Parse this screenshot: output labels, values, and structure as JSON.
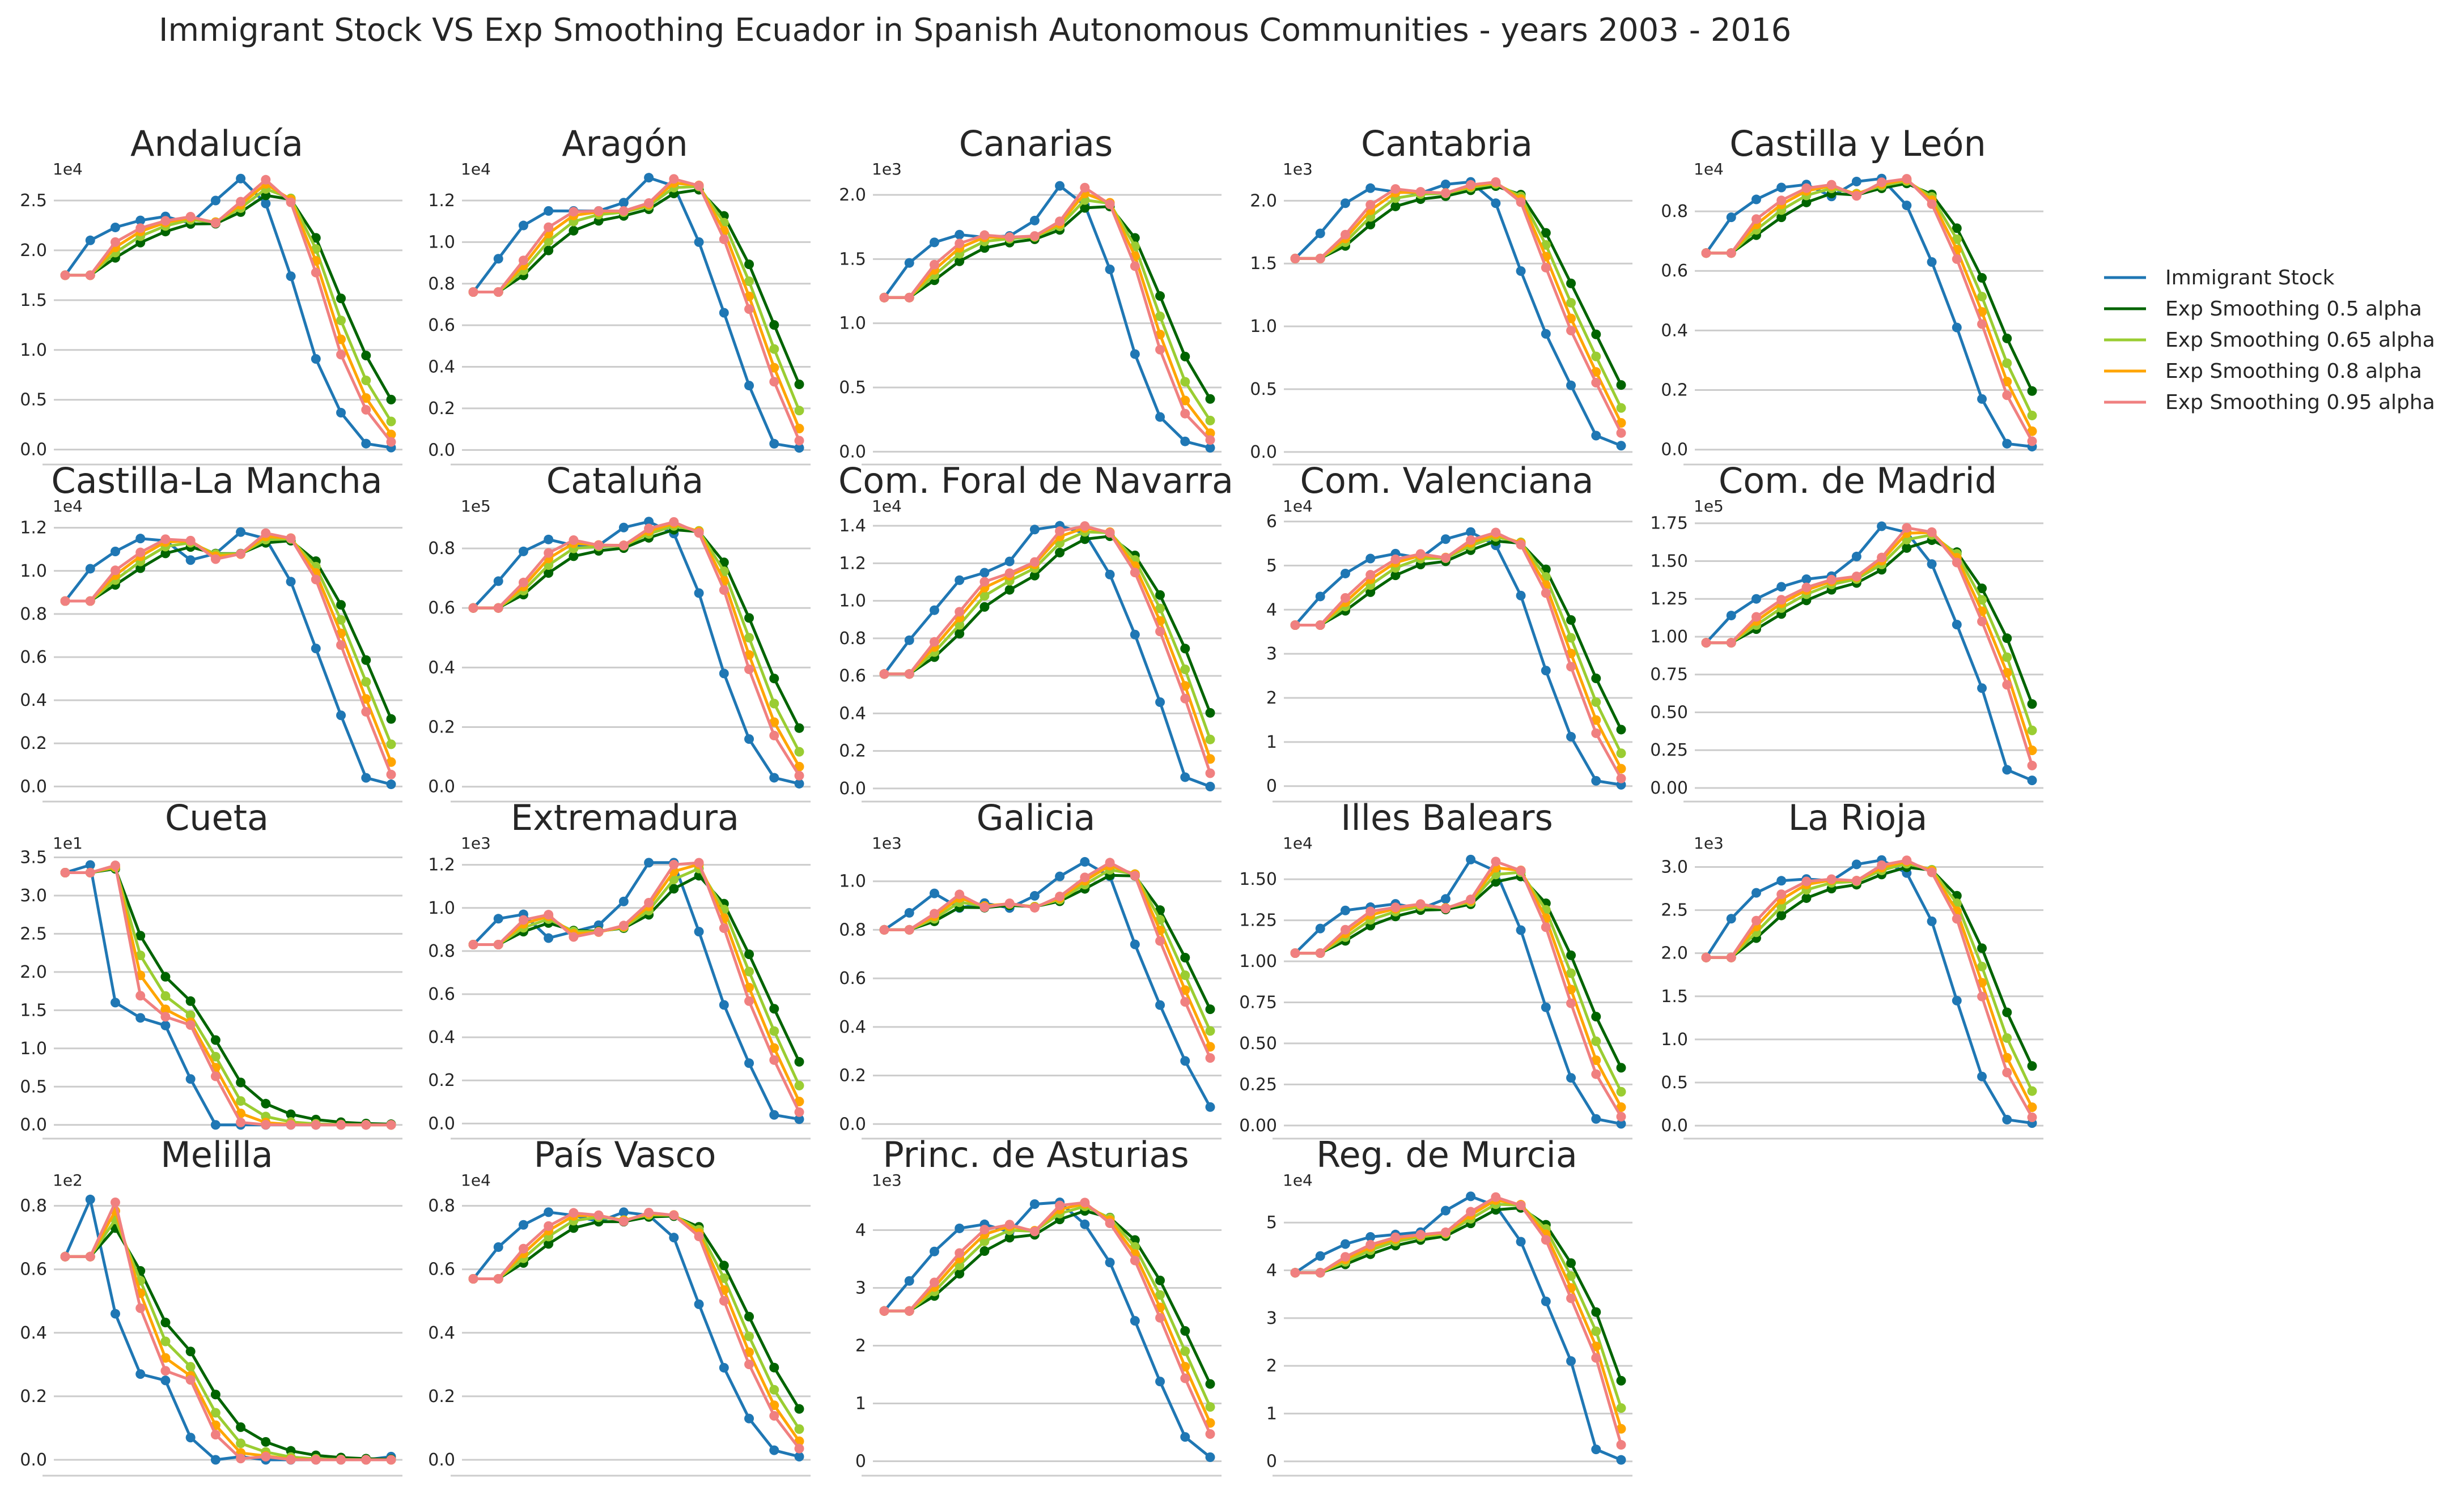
{
  "figure": {
    "title": "Immigrant Stock VS Exp Smoothing Ecuador in Spanish Autonomous Communities - years 2003 - 2016"
  },
  "legend": {
    "placement": "right",
    "entries": [
      {
        "label": "Immigrant Stock",
        "color": "#1f77b4"
      },
      {
        "label": "Exp Smoothing 0.5 alpha",
        "color": "#006400"
      },
      {
        "label": "Exp Smoothing 0.65 alpha",
        "color": "#9acd32"
      },
      {
        "label": "Exp Smoothing 0.8 alpha",
        "color": "#ffa500"
      },
      {
        "label": "Exp Smoothing 0.95 alpha",
        "color": "#f08080"
      }
    ]
  },
  "chart_data": [
    {
      "type": "line",
      "title": "Andalucía",
      "multiplier": "1e4",
      "yticks": [
        0.0,
        0.5,
        1.0,
        1.5,
        2.0,
        2.5
      ],
      "ylim": [
        -0.15,
        2.75
      ],
      "grid": true,
      "series": [
        {
          "name": "Immigrant Stock",
          "values": [
            1.75,
            2.1,
            2.23,
            2.3,
            2.34,
            2.27,
            2.5,
            2.72,
            2.47,
            1.74,
            0.91,
            0.37,
            0.06,
            0.02
          ]
        }
      ]
    },
    {
      "type": "line",
      "title": "Aragón",
      "multiplier": "1e4",
      "yticks": [
        0.0,
        0.2,
        0.4,
        0.6,
        0.8,
        1.0,
        1.2
      ],
      "ylim": [
        -0.07,
        1.32
      ],
      "grid": true,
      "series": [
        {
          "name": "Immigrant Stock",
          "values": [
            0.76,
            0.92,
            1.08,
            1.15,
            1.15,
            1.15,
            1.19,
            1.31,
            1.27,
            1.0,
            0.66,
            0.31,
            0.03,
            0.01
          ]
        }
      ]
    },
    {
      "type": "line",
      "title": "Canarias",
      "multiplier": "1e3",
      "yticks": [
        0.0,
        0.5,
        1.0,
        1.5,
        2.0
      ],
      "ylim": [
        -0.1,
        2.15
      ],
      "grid": true,
      "series": [
        {
          "name": "Immigrant Stock",
          "values": [
            1.2,
            1.47,
            1.63,
            1.69,
            1.67,
            1.68,
            1.8,
            2.07,
            1.92,
            1.42,
            0.76,
            0.27,
            0.08,
            0.03
          ]
        }
      ]
    },
    {
      "type": "line",
      "title": "Cantabria",
      "multiplier": "1e3",
      "yticks": [
        0.0,
        0.5,
        1.0,
        1.5,
        2.0
      ],
      "ylim": [
        -0.1,
        2.2
      ],
      "grid": true,
      "series": [
        {
          "name": "Immigrant Stock",
          "values": [
            1.54,
            1.74,
            1.98,
            2.1,
            2.07,
            2.06,
            2.13,
            2.15,
            1.98,
            1.44,
            0.94,
            0.53,
            0.13,
            0.05
          ]
        }
      ]
    },
    {
      "type": "line",
      "title": "Castilla y León",
      "multiplier": "1e4",
      "yticks": [
        0.0,
        0.2,
        0.4,
        0.6,
        0.8
      ],
      "ylim": [
        -0.05,
        0.92
      ],
      "grid": true,
      "series": [
        {
          "name": "Immigrant Stock",
          "values": [
            0.66,
            0.78,
            0.84,
            0.88,
            0.89,
            0.85,
            0.9,
            0.91,
            0.82,
            0.63,
            0.41,
            0.17,
            0.02,
            0.01
          ]
        }
      ]
    },
    {
      "type": "line",
      "title": "Castilla-La Mancha",
      "multiplier": "1e4",
      "yticks": [
        0.0,
        0.2,
        0.4,
        0.6,
        0.8,
        1.0,
        1.2
      ],
      "ylim": [
        -0.07,
        1.27
      ],
      "grid": true,
      "series": [
        {
          "name": "Immigrant Stock",
          "values": [
            0.86,
            1.01,
            1.09,
            1.15,
            1.14,
            1.05,
            1.08,
            1.18,
            1.15,
            0.95,
            0.64,
            0.33,
            0.04,
            0.01
          ]
        }
      ]
    },
    {
      "type": "line",
      "title": "Cataluña",
      "multiplier": "1e5",
      "yticks": [
        0.0,
        0.2,
        0.4,
        0.6,
        0.8
      ],
      "ylim": [
        -0.05,
        0.92
      ],
      "grid": true,
      "series": [
        {
          "name": "Immigrant Stock",
          "values": [
            0.6,
            0.69,
            0.79,
            0.83,
            0.81,
            0.81,
            0.87,
            0.89,
            0.85,
            0.65,
            0.38,
            0.16,
            0.03,
            0.01
          ]
        }
      ]
    },
    {
      "type": "line",
      "title": "Com. Foral de Navarra",
      "multiplier": "1e4",
      "yticks": [
        0.0,
        0.2,
        0.4,
        0.6,
        0.8,
        1.0,
        1.2,
        1.4
      ],
      "ylim": [
        -0.07,
        1.47
      ],
      "grid": true,
      "series": [
        {
          "name": "Immigrant Stock",
          "values": [
            0.61,
            0.79,
            0.95,
            1.11,
            1.15,
            1.21,
            1.38,
            1.4,
            1.36,
            1.14,
            0.82,
            0.46,
            0.06,
            0.01
          ]
        }
      ]
    },
    {
      "type": "line",
      "title": "Com. Valenciana",
      "multiplier": "1e4",
      "yticks": [
        0,
        1,
        2,
        3,
        4,
        5,
        6
      ],
      "ylim": [
        -0.35,
        6.2
      ],
      "grid": true,
      "series": [
        {
          "name": "Immigrant Stock",
          "values": [
            3.65,
            4.3,
            4.82,
            5.16,
            5.27,
            5.17,
            5.6,
            5.76,
            5.46,
            4.32,
            2.62,
            1.12,
            0.12,
            0.03
          ]
        }
      ]
    },
    {
      "type": "line",
      "title": "Com. de Madrid",
      "multiplier": "1e5",
      "yticks": [
        0.0,
        0.25,
        0.5,
        0.75,
        1.0,
        1.25,
        1.5,
        1.75
      ],
      "ylim": [
        -0.09,
        1.82
      ],
      "grid": true,
      "series": [
        {
          "name": "Immigrant Stock",
          "values": [
            0.96,
            1.14,
            1.25,
            1.33,
            1.38,
            1.4,
            1.53,
            1.73,
            1.69,
            1.48,
            1.08,
            0.66,
            0.12,
            0.05
          ]
        }
      ]
    },
    {
      "type": "line",
      "title": "Cueta",
      "multiplier": "1e1",
      "yticks": [
        0.0,
        0.5,
        1.0,
        1.5,
        2.0,
        2.5,
        3.0,
        3.5
      ],
      "ylim": [
        -0.18,
        3.6
      ],
      "grid": true,
      "series": [
        {
          "name": "Immigrant Stock",
          "values": [
            3.3,
            3.4,
            1.6,
            1.4,
            1.3,
            0.6,
            0.0,
            0.0,
            0.0,
            0.0,
            0.0,
            0.0,
            0.0,
            0.0
          ]
        }
      ]
    },
    {
      "type": "line",
      "title": "Extremadura",
      "multiplier": "1e3",
      "yticks": [
        0.0,
        0.2,
        0.4,
        0.6,
        0.8,
        1.0,
        1.2
      ],
      "ylim": [
        -0.07,
        1.27
      ],
      "grid": true,
      "series": [
        {
          "name": "Immigrant Stock",
          "values": [
            0.83,
            0.95,
            0.97,
            0.86,
            0.89,
            0.92,
            1.03,
            1.21,
            1.21,
            0.89,
            0.55,
            0.28,
            0.04,
            0.02
          ]
        }
      ]
    },
    {
      "type": "line",
      "title": "Galicia",
      "multiplier": "1e3",
      "yticks": [
        0.0,
        0.2,
        0.4,
        0.6,
        0.8,
        1.0
      ],
      "ylim": [
        -0.06,
        1.13
      ],
      "grid": true,
      "series": [
        {
          "name": "Immigrant Stock",
          "values": [
            0.8,
            0.87,
            0.95,
            0.89,
            0.91,
            0.89,
            0.94,
            1.02,
            1.08,
            1.02,
            0.74,
            0.49,
            0.26,
            0.07
          ]
        }
      ]
    },
    {
      "type": "line",
      "title": "Illes Balears",
      "multiplier": "1e4",
      "yticks": [
        0.0,
        0.25,
        0.5,
        0.75,
        1.0,
        1.25,
        1.5
      ],
      "ylim": [
        -0.08,
        1.68
      ],
      "grid": true,
      "series": [
        {
          "name": "Immigrant Stock",
          "values": [
            1.05,
            1.2,
            1.31,
            1.33,
            1.35,
            1.32,
            1.38,
            1.62,
            1.55,
            1.19,
            0.72,
            0.29,
            0.04,
            0.01
          ]
        }
      ]
    },
    {
      "type": "line",
      "title": "La Rioja",
      "multiplier": "1e3",
      "yticks": [
        0.0,
        0.5,
        1.0,
        1.5,
        2.0,
        2.5,
        3.0
      ],
      "ylim": [
        -0.15,
        3.2
      ],
      "grid": true,
      "series": [
        {
          "name": "Immigrant Stock",
          "values": [
            1.95,
            2.4,
            2.7,
            2.84,
            2.86,
            2.84,
            3.03,
            3.08,
            2.93,
            2.37,
            1.45,
            0.57,
            0.07,
            0.03
          ]
        }
      ]
    },
    {
      "type": "line",
      "title": "Melilla",
      "multiplier": "1e2",
      "yticks": [
        0.0,
        0.2,
        0.4,
        0.6,
        0.8
      ],
      "ylim": [
        -0.05,
        0.86
      ],
      "grid": true,
      "series": [
        {
          "name": "Immigrant Stock",
          "values": [
            0.64,
            0.82,
            0.46,
            0.27,
            0.25,
            0.07,
            0.0,
            0.01,
            0.0,
            0.0,
            0.0,
            0.0,
            0.0,
            0.01
          ]
        }
      ]
    },
    {
      "type": "line",
      "title": "País Vasco",
      "multiplier": "1e4",
      "yticks": [
        0.0,
        0.2,
        0.4,
        0.6,
        0.8
      ],
      "ylim": [
        -0.05,
        0.86
      ],
      "grid": true,
      "series": [
        {
          "name": "Immigrant Stock",
          "values": [
            0.57,
            0.67,
            0.74,
            0.78,
            0.77,
            0.75,
            0.78,
            0.77,
            0.7,
            0.49,
            0.29,
            0.13,
            0.03,
            0.01
          ]
        }
      ]
    },
    {
      "type": "line",
      "title": "Princ. de Asturias",
      "multiplier": "1e3",
      "yticks": [
        0,
        1,
        2,
        3,
        4
      ],
      "ylim": [
        -0.25,
        4.75
      ],
      "grid": true,
      "series": [
        {
          "name": "Immigrant Stock",
          "values": [
            2.6,
            3.12,
            3.63,
            4.03,
            4.1,
            3.97,
            4.45,
            4.48,
            4.1,
            3.44,
            2.43,
            1.38,
            0.42,
            0.07
          ]
        }
      ]
    },
    {
      "type": "line",
      "title": "Reg. de Murcia",
      "multiplier": "1e4",
      "yticks": [
        0,
        1,
        2,
        3,
        4,
        5
      ],
      "ylim": [
        -0.3,
        5.75
      ],
      "grid": true,
      "series": [
        {
          "name": "Immigrant Stock",
          "values": [
            3.95,
            4.3,
            4.55,
            4.7,
            4.75,
            4.8,
            5.25,
            5.55,
            5.35,
            4.6,
            3.35,
            2.1,
            0.25,
            0.03
          ]
        }
      ]
    }
  ]
}
